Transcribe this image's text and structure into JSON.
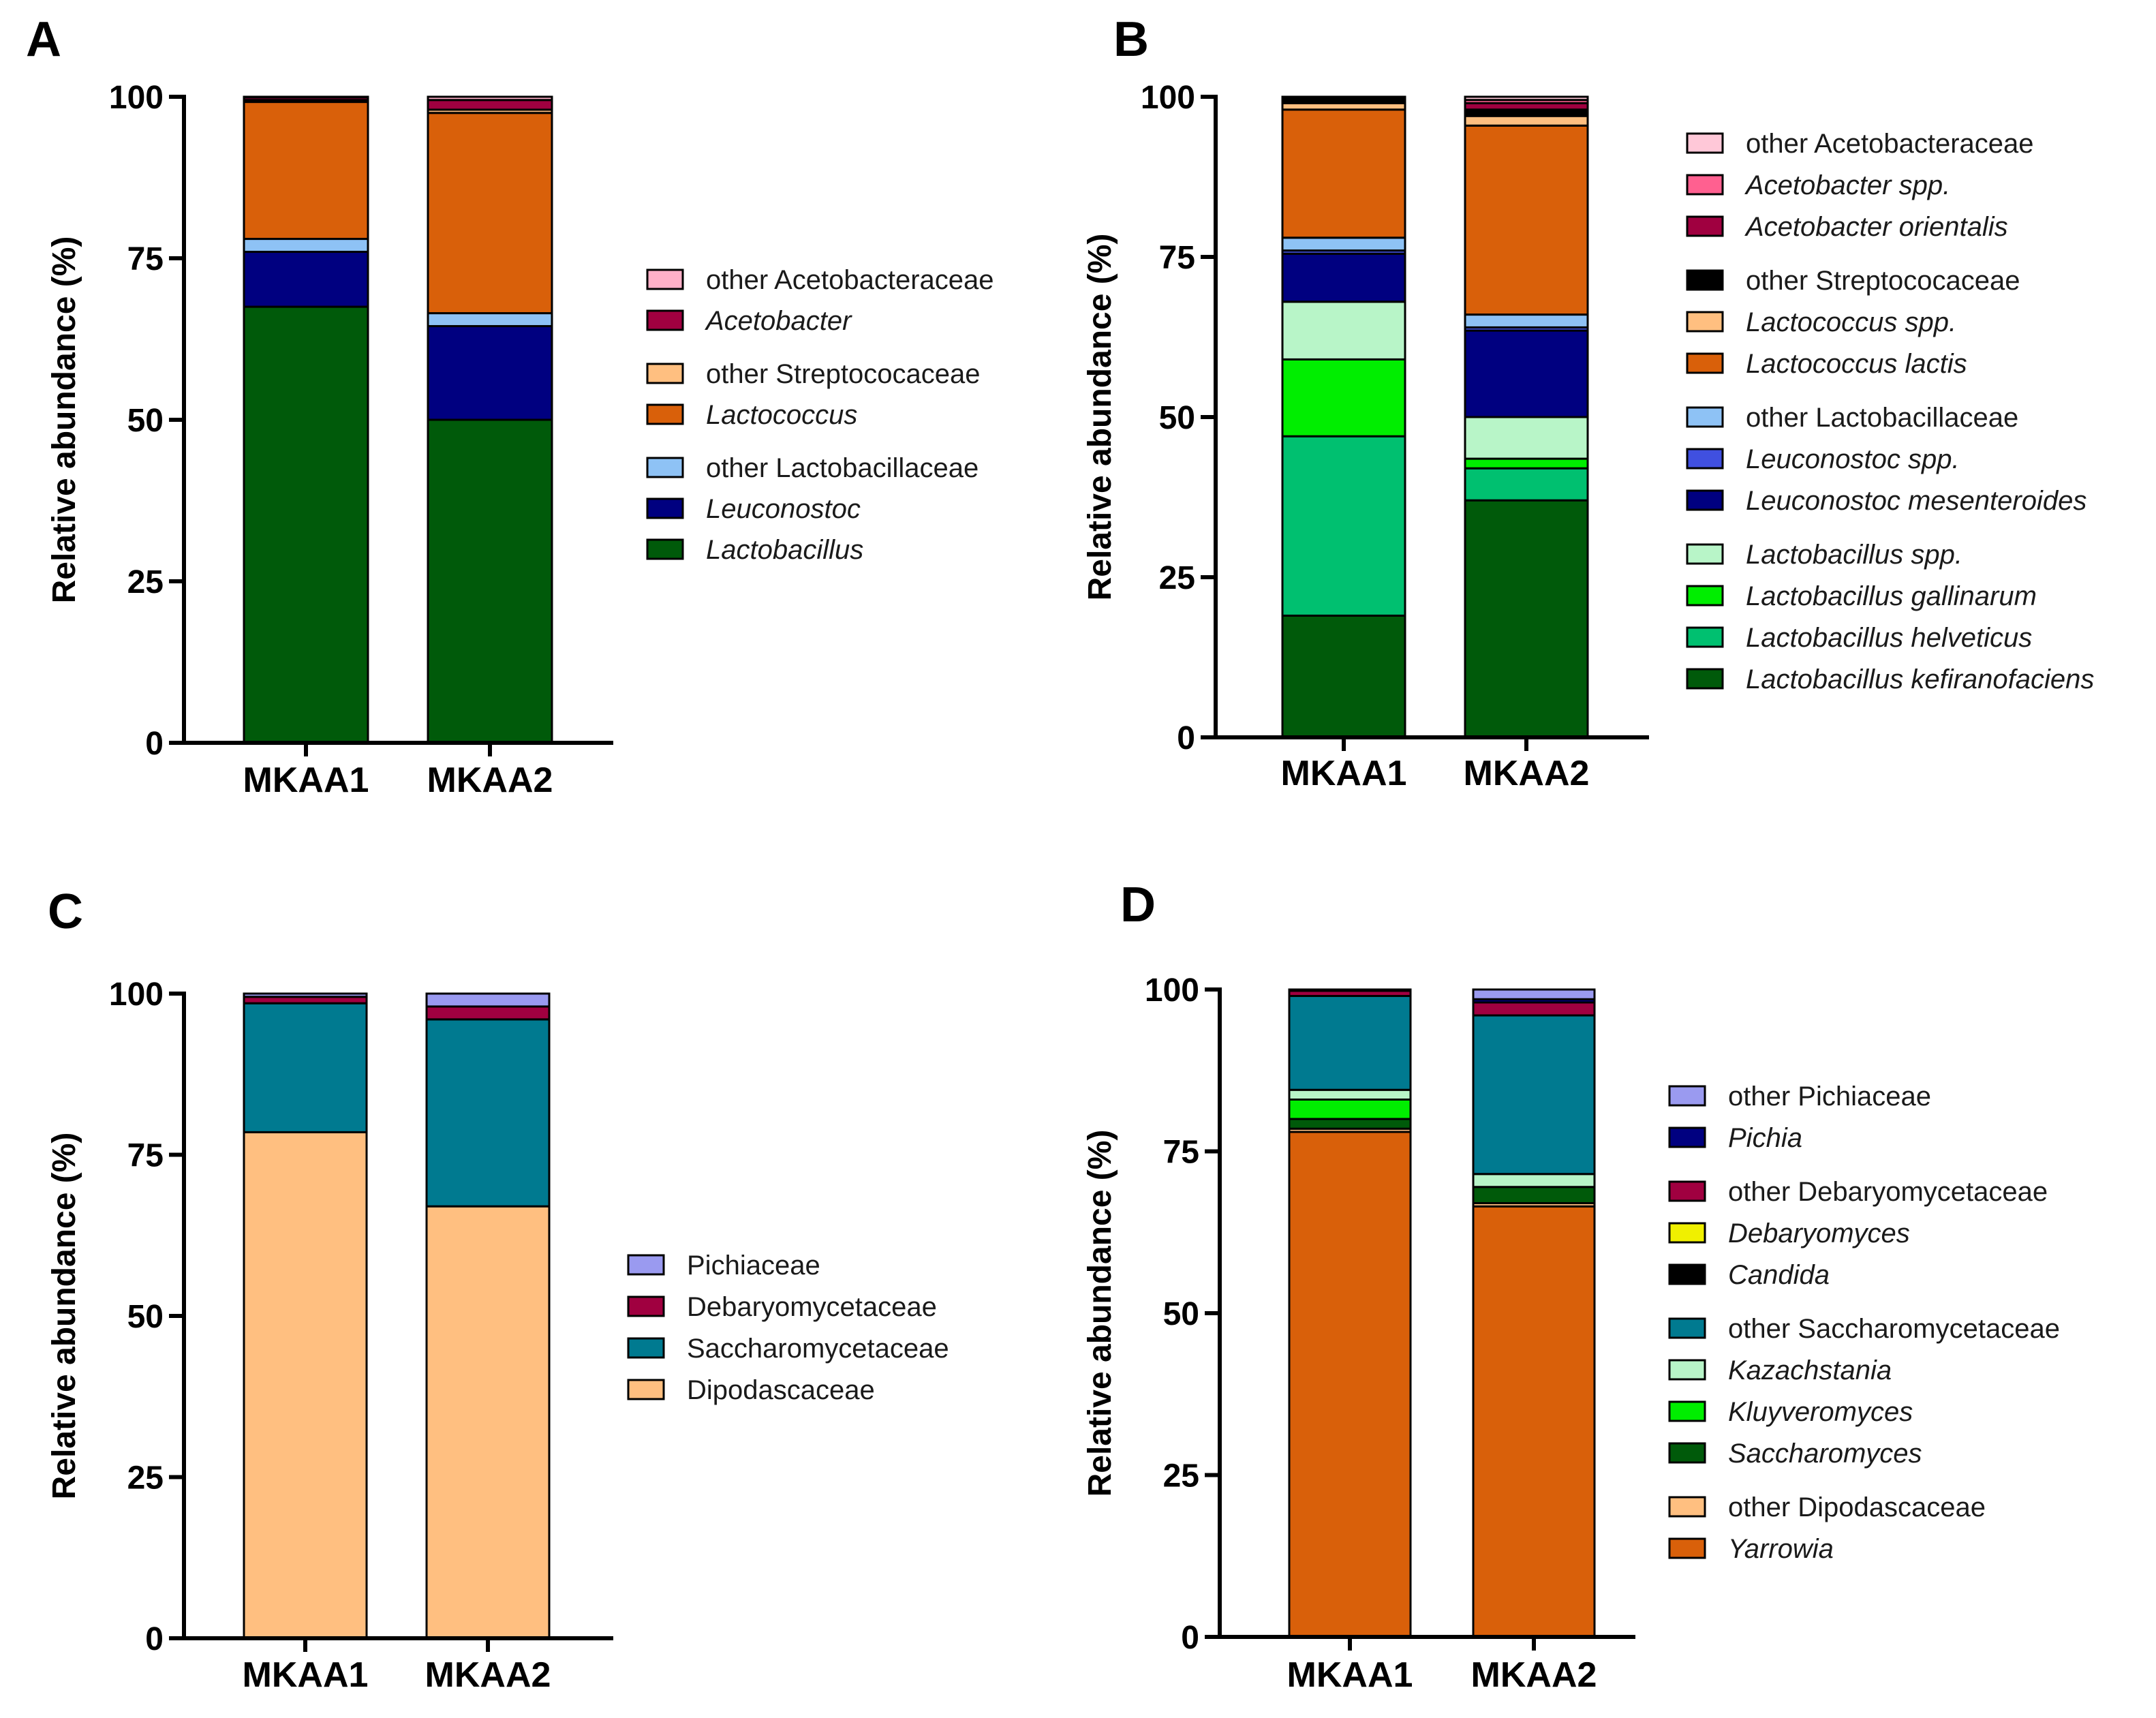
{
  "chart_data": [
    {
      "panel": "A",
      "type": "bar",
      "stacked": true,
      "ylabel": "Relative abundance (%)",
      "ylim": [
        0,
        100
      ],
      "yticks": [
        0,
        25,
        50,
        75,
        100
      ],
      "categories": [
        "MKAA1",
        "MKAA2"
      ],
      "series": [
        {
          "name": "Lactobacillus",
          "italic": true,
          "color": "#005a0a",
          "values": [
            67.5,
            50.0
          ]
        },
        {
          "name": "Leuconostoc",
          "italic": true,
          "color": "#000080",
          "values": [
            8.5,
            14.5
          ]
        },
        {
          "name": "other Lactobacillaceae",
          "italic": false,
          "color": "#8ec2f5",
          "values": [
            2.0,
            2.0
          ]
        },
        {
          "name": "Lactococcus",
          "italic": true,
          "color": "#d9600a",
          "values": [
            21.2,
            31.0
          ]
        },
        {
          "name": "other Streptococaceae",
          "italic": false,
          "color": "#ffbf80",
          "values": [
            0.3,
            0.5
          ]
        },
        {
          "name": "Acetobacter",
          "italic": true,
          "color": "#a00040",
          "values": [
            0.4,
            1.5
          ]
        },
        {
          "name": "other Acetobacteraceae",
          "italic": false,
          "color": "#ffb0c8",
          "values": [
            0.1,
            0.5
          ]
        }
      ]
    },
    {
      "panel": "B",
      "type": "bar",
      "stacked": true,
      "ylabel": "Relative abundance (%)",
      "ylim": [
        0,
        100
      ],
      "yticks": [
        0,
        25,
        50,
        75,
        100
      ],
      "categories": [
        "MKAA1",
        "MKAA2"
      ],
      "series": [
        {
          "name": "Lactobacillus kefiranofaciens",
          "italic": true,
          "color": "#005a0a",
          "values": [
            19.0,
            37.0
          ]
        },
        {
          "name": "Lactobacillus helveticus",
          "italic": true,
          "color": "#00c070",
          "values": [
            28.0,
            5.0
          ]
        },
        {
          "name": "Lactobacillus gallinarum",
          "italic": true,
          "color": "#00ee00",
          "values": [
            12.0,
            1.5
          ]
        },
        {
          "name": "Lactobacillus spp.",
          "italic": true,
          "color": "#b8f5c8",
          "values": [
            9.0,
            6.5
          ]
        },
        {
          "name": "Leuconostoc mesenteroides",
          "italic": true,
          "color": "#000080",
          "values": [
            7.5,
            13.5
          ]
        },
        {
          "name": "Leuconostoc spp.",
          "italic": true,
          "color": "#4050e0",
          "values": [
            0.5,
            0.5
          ]
        },
        {
          "name": "other Lactobacillaceae",
          "italic": false,
          "color": "#8ec2f5",
          "values": [
            2.0,
            2.0
          ]
        },
        {
          "name": "Lactococcus lactis",
          "italic": true,
          "color": "#d9600a",
          "values": [
            20.0,
            29.5
          ]
        },
        {
          "name": "Lactococcus spp.",
          "italic": true,
          "color": "#ffbf80",
          "values": [
            1.0,
            1.5
          ]
        },
        {
          "name": "other Streptococaceae",
          "italic": false,
          "color": "#000000",
          "values": [
            1.0,
            1.0
          ]
        },
        {
          "name": "Acetobacter orientalis",
          "italic": true,
          "color": "#a00040",
          "values": [
            0.0,
            1.0
          ]
        },
        {
          "name": "Acetobacter spp.",
          "italic": true,
          "color": "#ff6090",
          "values": [
            0.0,
            0.5
          ]
        },
        {
          "name": "other Acetobacteraceae",
          "italic": false,
          "color": "#ffc8d8",
          "values": [
            0.0,
            0.5
          ]
        }
      ]
    },
    {
      "panel": "C",
      "type": "bar",
      "stacked": true,
      "ylabel": "Relative abundance (%)",
      "ylim": [
        0,
        100
      ],
      "yticks": [
        0,
        25,
        50,
        75,
        100
      ],
      "categories": [
        "MKAA1",
        "MKAA2"
      ],
      "series": [
        {
          "name": "Dipodascaceae",
          "italic": false,
          "color": "#ffbf80",
          "values": [
            78.5,
            67.0
          ]
        },
        {
          "name": "Saccharomycetaceae",
          "italic": false,
          "color": "#007a90",
          "values": [
            20.0,
            29.0
          ]
        },
        {
          "name": "Debaryomycetaceae",
          "italic": false,
          "color": "#a00040",
          "values": [
            1.0,
            2.0
          ]
        },
        {
          "name": "Pichiaceae",
          "italic": false,
          "color": "#9a9af0",
          "values": [
            0.5,
            2.0
          ]
        }
      ]
    },
    {
      "panel": "D",
      "type": "bar",
      "stacked": true,
      "ylabel": "Relative abundance (%)",
      "ylim": [
        0,
        100
      ],
      "yticks": [
        0,
        25,
        50,
        75,
        100
      ],
      "categories": [
        "MKAA1",
        "MKAA2"
      ],
      "series": [
        {
          "name": "Yarrowia",
          "italic": true,
          "color": "#d9600a",
          "values": [
            78.0,
            66.5
          ]
        },
        {
          "name": "other Dipodascaceae",
          "italic": false,
          "color": "#ffbf80",
          "values": [
            0.5,
            0.5
          ]
        },
        {
          "name": "Saccharomyces",
          "italic": true,
          "color": "#005a0a",
          "values": [
            1.5,
            2.5
          ]
        },
        {
          "name": "Kluyveromyces",
          "italic": true,
          "color": "#00ee00",
          "values": [
            3.0,
            0.0
          ]
        },
        {
          "name": "Kazachstania",
          "italic": true,
          "color": "#b8f5c8",
          "values": [
            1.5,
            2.0
          ]
        },
        {
          "name": "other Saccharomycetaceae",
          "italic": false,
          "color": "#007a90",
          "values": [
            14.5,
            24.5
          ]
        },
        {
          "name": "Candida",
          "italic": true,
          "color": "#000000",
          "values": [
            0.0,
            0.0
          ]
        },
        {
          "name": "Debaryomyces",
          "italic": true,
          "color": "#f0f000",
          "values": [
            0.0,
            0.0
          ]
        },
        {
          "name": "other Debaryomycetaceae",
          "italic": false,
          "color": "#a00040",
          "values": [
            0.8,
            2.0
          ]
        },
        {
          "name": "Pichia",
          "italic": true,
          "color": "#000080",
          "values": [
            0.0,
            0.5
          ]
        },
        {
          "name": "other Pichiaceae",
          "italic": false,
          "color": "#9a9af0",
          "values": [
            0.2,
            1.5
          ]
        }
      ]
    }
  ]
}
